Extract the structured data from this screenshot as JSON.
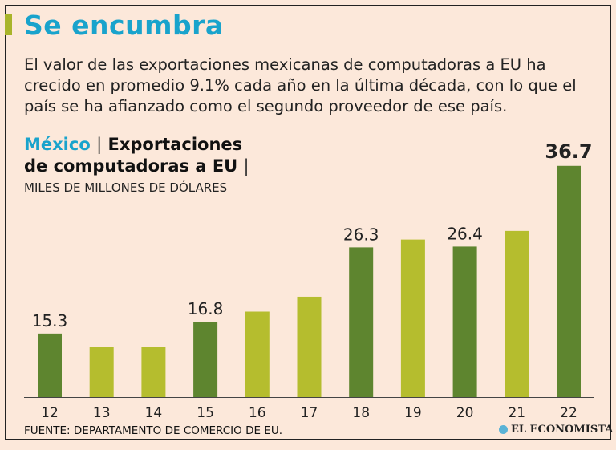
{
  "header": {
    "title": "Se encumbra",
    "description": "El valor de las exportaciones mexicanas de computadoras a EU ha crecido en promedio 9.1% cada año en la última década, con lo que el país se ha afianzado como el segundo proveedor de ese país."
  },
  "subtitle": {
    "country": "México",
    "sep1": "|",
    "line1": "Exportaciones",
    "line2": "de computadoras a EU",
    "sep2": "|",
    "units": "MILES DE MILLONES DE DÓLARES"
  },
  "footer": {
    "source": "FUENTE: DEPARTAMENTO DE COMERCIO DE EU.",
    "logo": "EL ECONOMISTA"
  },
  "colors": {
    "dark": "#5e852f",
    "light": "#b5bd2e",
    "accent": "#19a3cc"
  },
  "chart_data": {
    "type": "bar",
    "title": "México | Exportaciones de computadoras a EU",
    "ylabel": "Miles de millones de dólares",
    "categories": [
      "12",
      "13",
      "14",
      "15",
      "16",
      "17",
      "18",
      "19",
      "20",
      "21",
      "22"
    ],
    "values": [
      15.3,
      13.6,
      13.6,
      16.8,
      18.1,
      20.0,
      26.3,
      27.3,
      26.4,
      28.4,
      36.7
    ],
    "labels": [
      "15.3",
      "",
      "",
      "16.8",
      "",
      "",
      "26.3",
      "",
      "26.4",
      "",
      "36.7"
    ],
    "bar_colors": [
      "dark",
      "light",
      "light",
      "dark",
      "light",
      "light",
      "dark",
      "light",
      "dark",
      "light",
      "dark"
    ],
    "ylim": [
      7.2,
      37
    ],
    "grid": false
  }
}
